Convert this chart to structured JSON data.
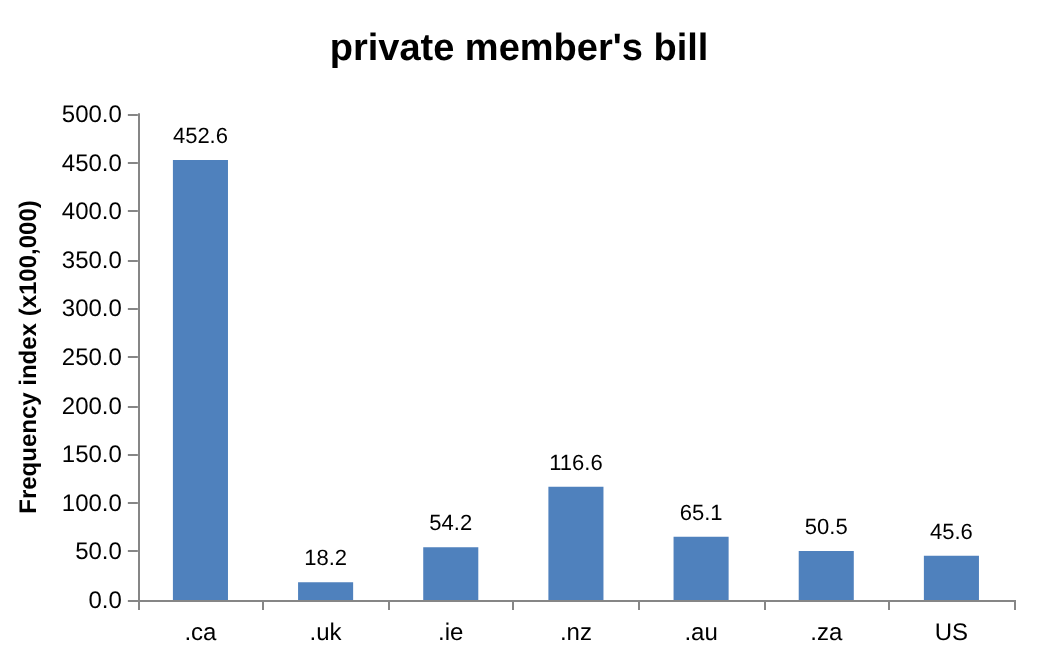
{
  "chart_data": {
    "type": "bar",
    "title": "private member's bill",
    "ylabel": "Frequency index (x100,000)",
    "categories": [
      ".ca",
      ".uk",
      ".ie",
      ".nz",
      ".au",
      ".za",
      "US"
    ],
    "values": [
      452.6,
      18.2,
      54.2,
      116.6,
      65.1,
      50.5,
      45.6
    ],
    "color": "#4f81bd",
    "ylim": [
      0,
      500
    ],
    "yticks": [
      {
        "value": 0,
        "label": "0.0"
      },
      {
        "value": 50,
        "label": "50.0"
      },
      {
        "value": 100,
        "label": "100.0"
      },
      {
        "value": 150,
        "label": "150.0"
      },
      {
        "value": 200,
        "label": "200.0"
      },
      {
        "value": 250,
        "label": "250.0"
      },
      {
        "value": 300,
        "label": "300.0"
      },
      {
        "value": 350,
        "label": "350.0"
      },
      {
        "value": 400,
        "label": "400.0"
      },
      {
        "value": 450,
        "label": "450.0"
      },
      {
        "value": 500,
        "label": "500.0"
      }
    ],
    "data_labels": true,
    "grid": false
  }
}
